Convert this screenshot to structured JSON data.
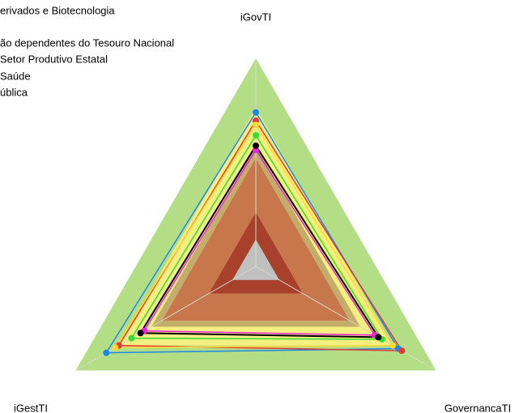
{
  "chart_data": {
    "type": "radar",
    "categories": [
      "iGovTI",
      "GovernancaTI",
      "iGestTI"
    ],
    "ylim": [
      0,
      1
    ],
    "bands": [
      {
        "value": 1,
        "color": "#b3de86"
      },
      {
        "value": 0.76,
        "color": "#f3ef80"
      },
      {
        "value": 0.58,
        "color": "#c3ad6a"
      },
      {
        "value": 0.52,
        "color": "#c8764c"
      },
      {
        "value": 0.26,
        "color": "#a8412b"
      },
      {
        "value": 0.13,
        "color": "#c0c0c0"
      }
    ],
    "series": [
      {
        "name": "erivados e Biotecnologia",
        "color": "#1e88e5",
        "values": [
          0.74,
          0.79,
          0.83
        ]
      },
      {
        "name": "ão dependentes do Tesouro Nacional",
        "color": "#e53935",
        "values": [
          0.7,
          0.81,
          0.76
        ]
      },
      {
        "name": "Setor Produtivo Estatal",
        "color": "#fdd835",
        "values": [
          0.68,
          0.76,
          0.78
        ]
      },
      {
        "name": "Saúde",
        "color": "#33dd33",
        "values": [
          0.63,
          0.7,
          0.69
        ]
      },
      {
        "name": "ública",
        "color": "#ee22dd",
        "values": [
          0.56,
          0.66,
          0.62
        ]
      },
      {
        "color": "#000000",
        "values": [
          0.58,
          0.68,
          0.64
        ]
      }
    ]
  }
}
